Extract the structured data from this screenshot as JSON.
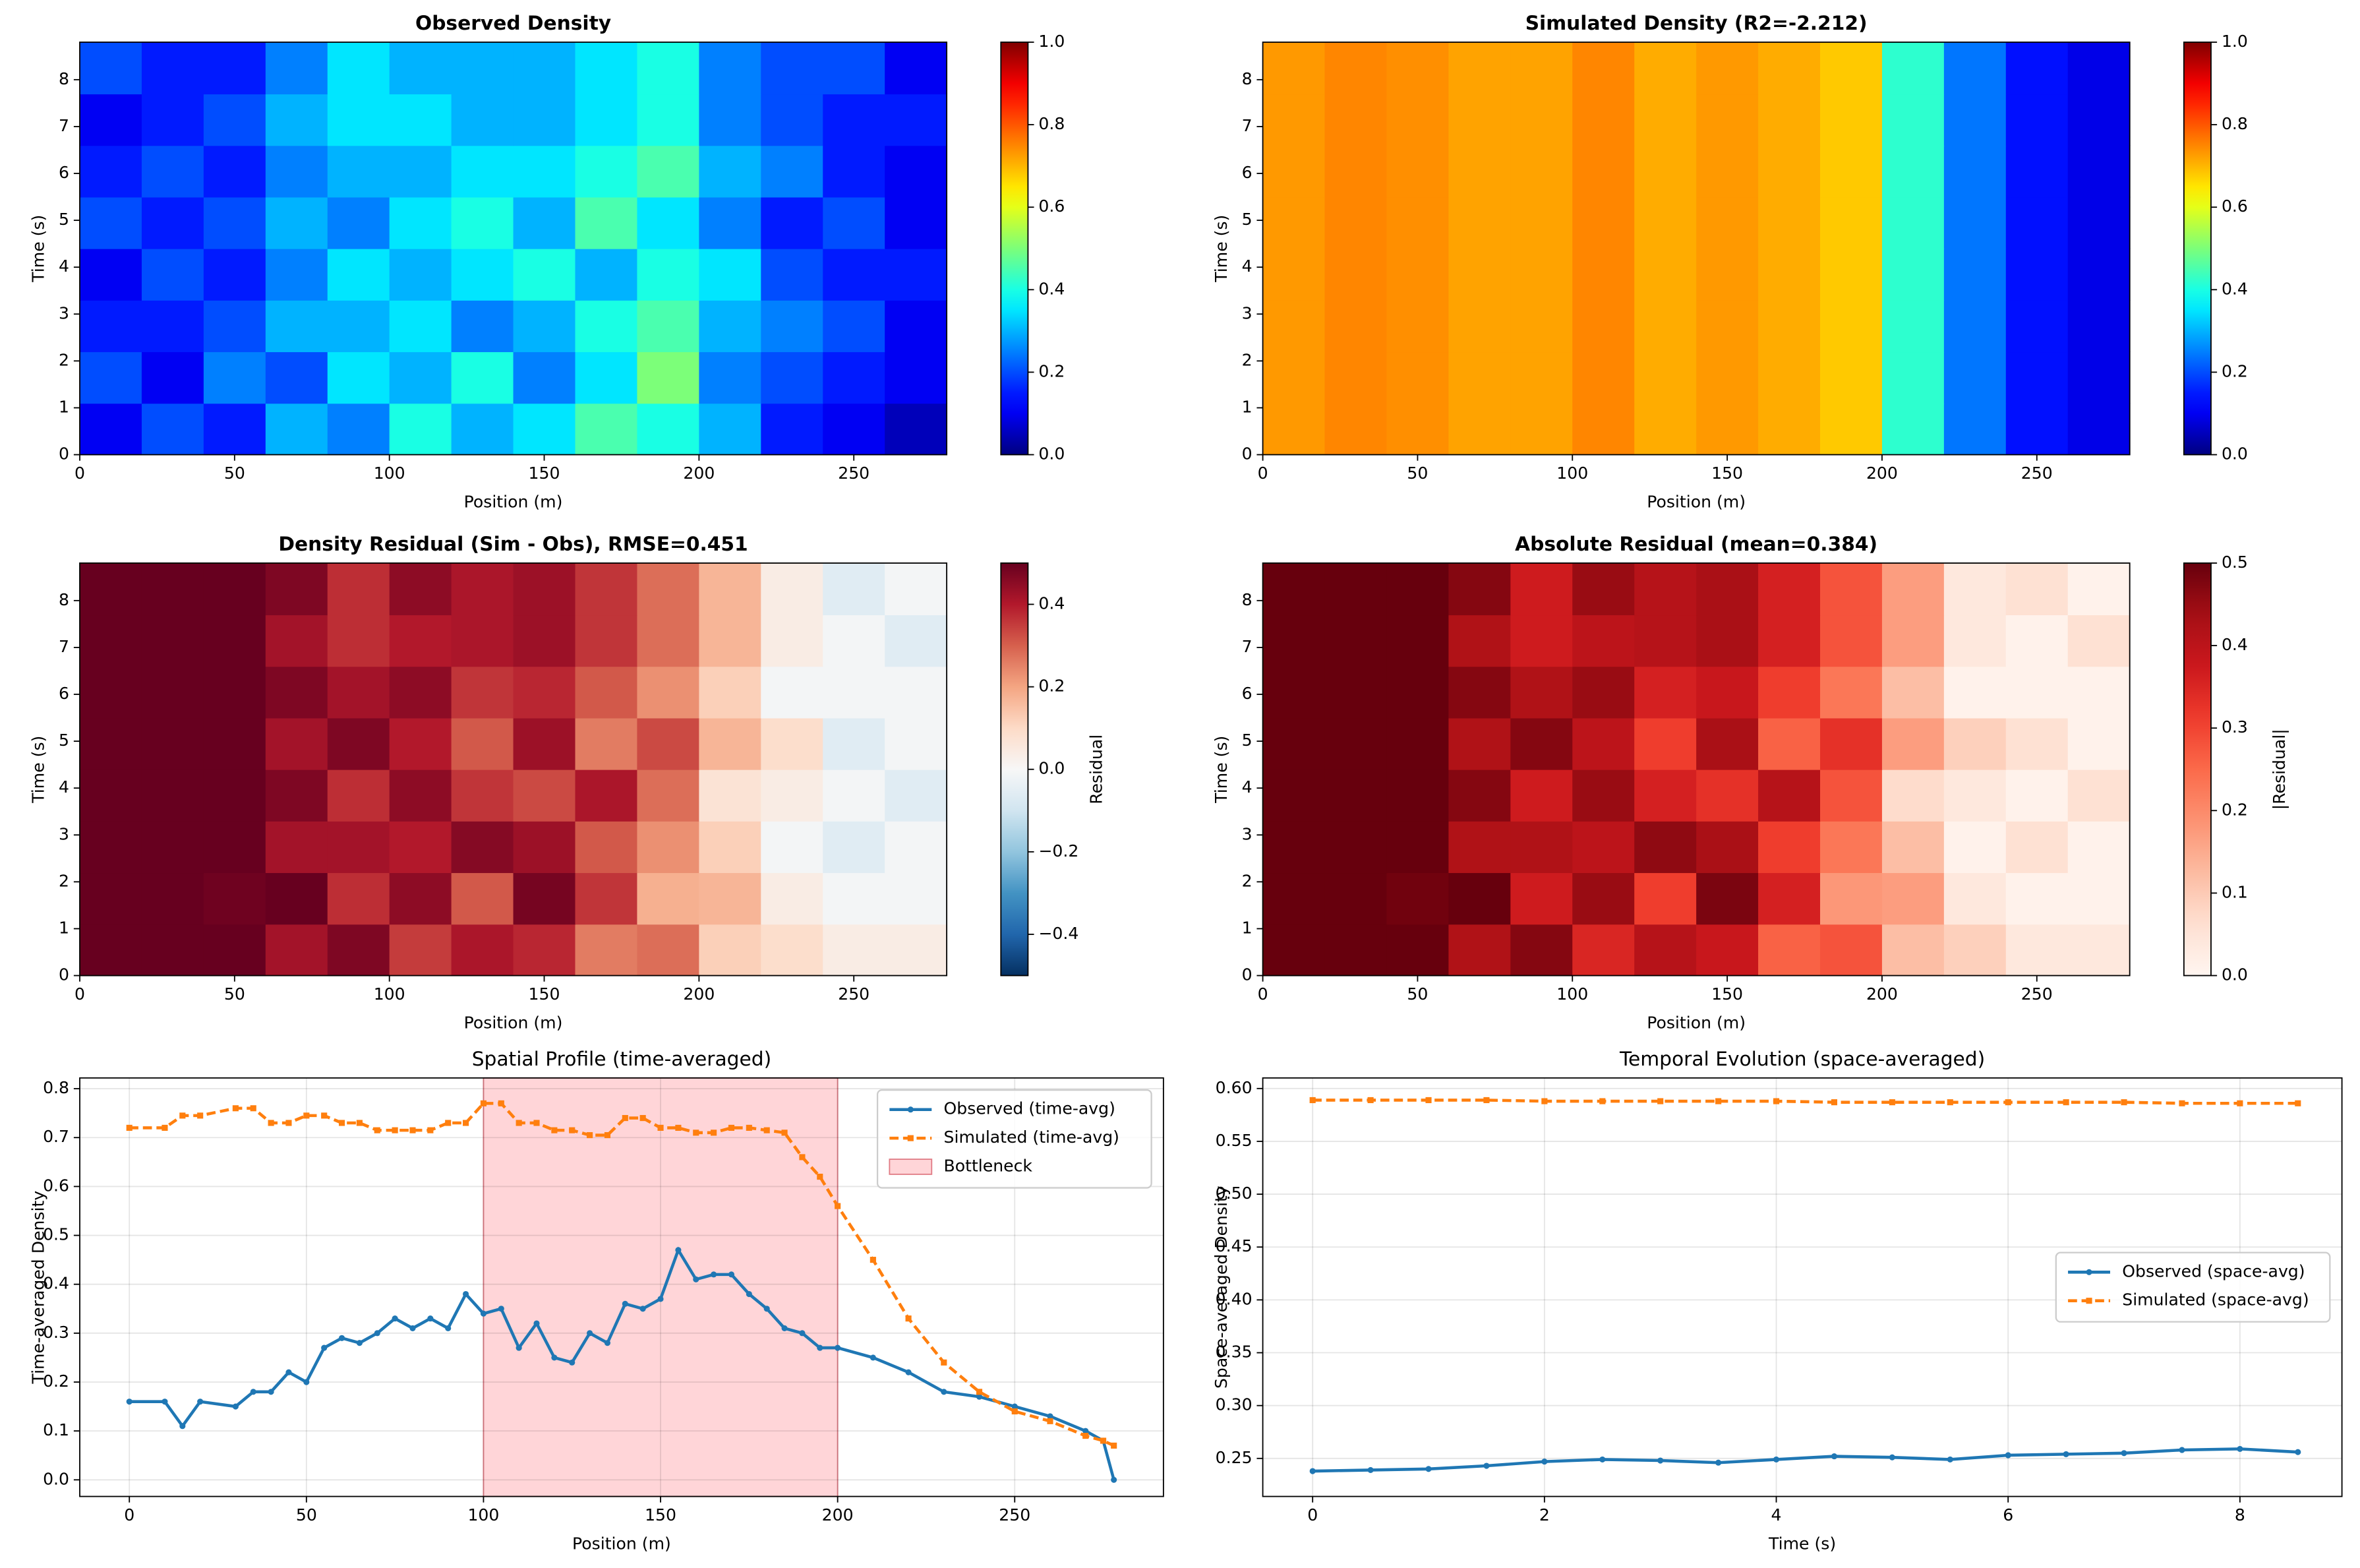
{
  "chart_data": [
    {
      "type": "heatmap",
      "title": "Observed Density",
      "xlabel": "Position (m)",
      "ylabel": "Time (s)",
      "xlim": [
        0,
        280
      ],
      "ylim": [
        0,
        8.8
      ],
      "xticks": [
        0,
        50,
        100,
        150,
        200,
        250
      ],
      "yticks": [
        0,
        1,
        2,
        3,
        4,
        5,
        6,
        7,
        8
      ],
      "cmap": "jet",
      "clim": [
        0,
        1
      ],
      "cticks": [
        {
          "value": 0,
          "label": "0.0"
        },
        0.2,
        0.4,
        0.6,
        0.8,
        {
          "value": 1,
          "label": "1.0"
        }
      ],
      "z": [
        [
          0.1,
          0.2,
          0.15,
          0.3,
          0.25,
          0.4,
          0.3,
          0.35,
          0.45,
          0.4,
          0.3,
          0.15,
          0.1,
          0.05
        ],
        [
          0.2,
          0.1,
          0.25,
          0.2,
          0.35,
          0.3,
          0.4,
          0.25,
          0.35,
          0.5,
          0.25,
          0.2,
          0.15,
          0.1
        ],
        [
          0.15,
          0.15,
          0.2,
          0.3,
          0.3,
          0.35,
          0.25,
          0.3,
          0.4,
          0.45,
          0.3,
          0.25,
          0.2,
          0.1
        ],
        [
          0.1,
          0.2,
          0.15,
          0.25,
          0.35,
          0.3,
          0.35,
          0.4,
          0.3,
          0.4,
          0.35,
          0.2,
          0.15,
          0.15
        ],
        [
          0.2,
          0.15,
          0.2,
          0.3,
          0.25,
          0.35,
          0.4,
          0.3,
          0.45,
          0.35,
          0.25,
          0.15,
          0.2,
          0.1
        ],
        [
          0.15,
          0.2,
          0.15,
          0.25,
          0.3,
          0.3,
          0.35,
          0.35,
          0.4,
          0.45,
          0.3,
          0.25,
          0.15,
          0.1
        ],
        [
          0.1,
          0.15,
          0.2,
          0.3,
          0.35,
          0.35,
          0.3,
          0.3,
          0.35,
          0.4,
          0.25,
          0.2,
          0.15,
          0.15
        ],
        [
          0.2,
          0.15,
          0.15,
          0.25,
          0.35,
          0.3,
          0.3,
          0.3,
          0.35,
          0.4,
          0.25,
          0.2,
          0.2,
          0.1
        ]
      ]
    },
    {
      "type": "heatmap",
      "title": "Simulated Density (R2=-2.212)",
      "xlabel": "Position (m)",
      "ylabel": "Time (s)",
      "xlim": [
        0,
        280
      ],
      "ylim": [
        0,
        8.8
      ],
      "xticks": [
        0,
        50,
        100,
        150,
        200,
        250
      ],
      "yticks": [
        0,
        1,
        2,
        3,
        4,
        5,
        6,
        7,
        8
      ],
      "cmap": "jet",
      "clim": [
        0,
        1
      ],
      "cticks": [
        {
          "value": 0,
          "label": "0.0"
        },
        0.2,
        0.4,
        0.6,
        0.8,
        {
          "value": 1,
          "label": "1.0"
        }
      ],
      "z": [
        [
          0.73,
          0.75,
          0.74,
          0.72,
          0.72,
          0.75,
          0.71,
          0.73,
          0.71,
          0.68,
          0.42,
          0.24,
          0.14,
          0.09
        ],
        [
          0.73,
          0.75,
          0.74,
          0.72,
          0.72,
          0.75,
          0.71,
          0.73,
          0.71,
          0.68,
          0.42,
          0.24,
          0.14,
          0.09
        ],
        [
          0.73,
          0.75,
          0.74,
          0.72,
          0.72,
          0.75,
          0.71,
          0.73,
          0.71,
          0.68,
          0.42,
          0.24,
          0.14,
          0.09
        ],
        [
          0.73,
          0.75,
          0.74,
          0.72,
          0.72,
          0.75,
          0.71,
          0.73,
          0.71,
          0.68,
          0.42,
          0.24,
          0.14,
          0.09
        ],
        [
          0.73,
          0.75,
          0.74,
          0.72,
          0.72,
          0.75,
          0.71,
          0.73,
          0.71,
          0.68,
          0.42,
          0.24,
          0.14,
          0.09
        ],
        [
          0.73,
          0.75,
          0.74,
          0.72,
          0.72,
          0.75,
          0.71,
          0.73,
          0.71,
          0.68,
          0.42,
          0.24,
          0.14,
          0.09
        ],
        [
          0.73,
          0.75,
          0.74,
          0.72,
          0.72,
          0.75,
          0.71,
          0.73,
          0.71,
          0.68,
          0.42,
          0.24,
          0.14,
          0.09
        ],
        [
          0.73,
          0.75,
          0.74,
          0.72,
          0.72,
          0.75,
          0.71,
          0.73,
          0.71,
          0.68,
          0.42,
          0.24,
          0.14,
          0.09
        ]
      ]
    },
    {
      "type": "heatmap",
      "title": "Density Residual (Sim - Obs), RMSE=0.451",
      "xlabel": "Position (m)",
      "ylabel": "Time (s)",
      "xlim": [
        0,
        280
      ],
      "ylim": [
        0,
        8.8
      ],
      "xticks": [
        0,
        50,
        100,
        150,
        200,
        250
      ],
      "yticks": [
        0,
        1,
        2,
        3,
        4,
        5,
        6,
        7,
        8
      ],
      "cmap": "RdBu_r",
      "clim": [
        -0.5,
        0.5
      ],
      "clabel": "Residual",
      "cticks": [
        {
          "value": -0.4,
          "label": "−0.4"
        },
        {
          "value": -0.2,
          "label": "−0.2"
        },
        {
          "value": 0,
          "label": "0.0"
        },
        0.2,
        0.4
      ],
      "z": [
        [
          0.63,
          0.55,
          0.59,
          0.42,
          0.47,
          0.35,
          0.41,
          0.38,
          0.26,
          0.28,
          0.12,
          0.09,
          0.04,
          0.04
        ],
        [
          0.53,
          0.65,
          0.49,
          0.52,
          0.37,
          0.45,
          0.31,
          0.48,
          0.36,
          0.18,
          0.17,
          0.04,
          -0.01,
          -0.01
        ],
        [
          0.58,
          0.6,
          0.54,
          0.42,
          0.42,
          0.4,
          0.46,
          0.43,
          0.31,
          0.23,
          0.12,
          -0.01,
          -0.06,
          -0.01
        ],
        [
          0.63,
          0.55,
          0.59,
          0.47,
          0.37,
          0.45,
          0.36,
          0.33,
          0.41,
          0.28,
          0.07,
          0.04,
          -0.01,
          -0.06
        ],
        [
          0.53,
          0.6,
          0.54,
          0.42,
          0.47,
          0.4,
          0.31,
          0.43,
          0.26,
          0.33,
          0.17,
          0.09,
          -0.06,
          -0.01
        ],
        [
          0.58,
          0.55,
          0.59,
          0.47,
          0.42,
          0.45,
          0.36,
          0.38,
          0.31,
          0.23,
          0.12,
          -0.01,
          -0.01,
          -0.01
        ],
        [
          0.63,
          0.6,
          0.54,
          0.42,
          0.37,
          0.4,
          0.41,
          0.43,
          0.36,
          0.28,
          0.17,
          0.04,
          -0.01,
          -0.06
        ],
        [
          0.53,
          0.6,
          0.59,
          0.47,
          0.37,
          0.45,
          0.41,
          0.43,
          0.36,
          0.28,
          0.17,
          0.04,
          -0.06,
          -0.01
        ]
      ]
    },
    {
      "type": "heatmap",
      "title": "Absolute Residual (mean=0.384)",
      "xlabel": "Position (m)",
      "ylabel": "Time (s)",
      "xlim": [
        0,
        280
      ],
      "ylim": [
        0,
        8.8
      ],
      "xticks": [
        0,
        50,
        100,
        150,
        200,
        250
      ],
      "yticks": [
        0,
        1,
        2,
        3,
        4,
        5,
        6,
        7,
        8
      ],
      "cmap": "Reds",
      "clim": [
        0,
        0.5
      ],
      "clabel": "|Residual|",
      "cticks": [
        {
          "value": 0,
          "label": "0.0"
        },
        0.1,
        0.2,
        0.3,
        0.4,
        0.5
      ],
      "z": [
        [
          0.63,
          0.55,
          0.59,
          0.42,
          0.47,
          0.35,
          0.41,
          0.38,
          0.26,
          0.28,
          0.12,
          0.09,
          0.04,
          0.04
        ],
        [
          0.53,
          0.65,
          0.49,
          0.52,
          0.37,
          0.45,
          0.31,
          0.48,
          0.36,
          0.18,
          0.17,
          0.04,
          0.01,
          0.01
        ],
        [
          0.58,
          0.6,
          0.54,
          0.42,
          0.42,
          0.4,
          0.46,
          0.43,
          0.31,
          0.23,
          0.12,
          0.01,
          0.06,
          0.01
        ],
        [
          0.63,
          0.55,
          0.59,
          0.47,
          0.37,
          0.45,
          0.36,
          0.33,
          0.41,
          0.28,
          0.07,
          0.04,
          0.01,
          0.06
        ],
        [
          0.53,
          0.6,
          0.54,
          0.42,
          0.47,
          0.4,
          0.31,
          0.43,
          0.26,
          0.33,
          0.17,
          0.09,
          0.06,
          0.01
        ],
        [
          0.58,
          0.55,
          0.59,
          0.47,
          0.42,
          0.45,
          0.36,
          0.38,
          0.31,
          0.23,
          0.12,
          0.01,
          0.01,
          0.01
        ],
        [
          0.63,
          0.6,
          0.54,
          0.42,
          0.37,
          0.4,
          0.41,
          0.43,
          0.36,
          0.28,
          0.17,
          0.04,
          0.01,
          0.06
        ],
        [
          0.53,
          0.6,
          0.59,
          0.47,
          0.37,
          0.45,
          0.41,
          0.43,
          0.36,
          0.28,
          0.17,
          0.04,
          0.06,
          0.01
        ]
      ]
    },
    {
      "type": "line",
      "title": "Spatial Profile (time-averaged)",
      "xlabel": "Position (m)",
      "ylabel": "Time-averaged Density",
      "xlim": [
        -14,
        292
      ],
      "ylim": [
        -0.034,
        0.822
      ],
      "xticks": [
        0,
        50,
        100,
        150,
        200,
        250
      ],
      "yticks": [
        {
          "value": 0,
          "label": "0.0"
        },
        0.1,
        0.2,
        0.3,
        0.4,
        0.5,
        0.6,
        0.7,
        0.8
      ],
      "grid": true,
      "legend": "upper right",
      "x": [
        0,
        10,
        15,
        20,
        30,
        35,
        40,
        45,
        50,
        55,
        60,
        65,
        70,
        75,
        80,
        85,
        90,
        95,
        100,
        105,
        110,
        115,
        120,
        125,
        130,
        135,
        140,
        145,
        150,
        155,
        160,
        165,
        170,
        175,
        180,
        185,
        190,
        195,
        200,
        210,
        220,
        230,
        240,
        250,
        260,
        270,
        275,
        278
      ],
      "series": [
        {
          "name": "Observed (time-avg)",
          "color": "#1f77b4",
          "dashed": false,
          "marker": "circle",
          "values": [
            0.16,
            0.16,
            0.11,
            0.16,
            0.15,
            0.18,
            0.18,
            0.22,
            0.2,
            0.27,
            0.29,
            0.28,
            0.3,
            0.33,
            0.31,
            0.33,
            0.31,
            0.38,
            0.34,
            0.35,
            0.27,
            0.32,
            0.25,
            0.24,
            0.3,
            0.28,
            0.36,
            0.35,
            0.37,
            0.47,
            0.41,
            0.42,
            0.42,
            0.38,
            0.35,
            0.31,
            0.3,
            0.27,
            0.27,
            0.25,
            0.22,
            0.18,
            0.17,
            0.15,
            0.13,
            0.1,
            0.08,
            0.0
          ]
        },
        {
          "name": "Simulated (time-avg)",
          "color": "#ff7f0e",
          "dashed": true,
          "marker": "square",
          "values": [
            0.72,
            0.72,
            0.745,
            0.745,
            0.76,
            0.76,
            0.73,
            0.73,
            0.745,
            0.745,
            0.73,
            0.73,
            0.715,
            0.715,
            0.715,
            0.715,
            0.73,
            0.73,
            0.77,
            0.77,
            0.73,
            0.73,
            0.715,
            0.715,
            0.705,
            0.705,
            0.74,
            0.74,
            0.72,
            0.72,
            0.71,
            0.71,
            0.72,
            0.72,
            0.715,
            0.71,
            0.66,
            0.62,
            0.56,
            0.45,
            0.33,
            0.24,
            0.18,
            0.14,
            0.12,
            0.09,
            0.08,
            0.07
          ]
        }
      ],
      "spans": [
        {
          "name": "Bottleneck",
          "x": [
            100,
            200
          ],
          "color": "#ffb3b8"
        }
      ]
    },
    {
      "type": "line",
      "title": "Temporal Evolution (space-averaged)",
      "xlabel": "Time (s)",
      "ylabel": "Space-averaged Density",
      "xlim": [
        -0.43,
        8.88
      ],
      "ylim": [
        0.214,
        0.61
      ],
      "xticks": [
        0,
        2,
        4,
        6,
        8
      ],
      "yticks": [
        0.25,
        {
          "value": 0.3,
          "label": "0.30"
        },
        0.35,
        {
          "value": 0.4,
          "label": "0.40"
        },
        0.45,
        {
          "value": 0.5,
          "label": "0.50"
        },
        0.55,
        {
          "value": 0.6,
          "label": "0.60"
        }
      ],
      "grid": true,
      "legend": "center right",
      "x": [
        0,
        0.5,
        1,
        1.5,
        2,
        2.5,
        3,
        3.5,
        4,
        4.5,
        5,
        5.5,
        6,
        6.5,
        7,
        7.5,
        8,
        8.5
      ],
      "series": [
        {
          "name": "Observed (space-avg)",
          "color": "#1f77b4",
          "dashed": false,
          "marker": "circle",
          "values": [
            0.238,
            0.239,
            0.24,
            0.243,
            0.247,
            0.249,
            0.248,
            0.246,
            0.249,
            0.252,
            0.251,
            0.249,
            0.253,
            0.254,
            0.255,
            0.258,
            0.259,
            0.256
          ]
        },
        {
          "name": "Simulated (space-avg)",
          "color": "#ff7f0e",
          "dashed": true,
          "marker": "square",
          "values": [
            0.589,
            0.589,
            0.589,
            0.589,
            0.588,
            0.588,
            0.588,
            0.588,
            0.588,
            0.587,
            0.587,
            0.587,
            0.587,
            0.587,
            0.587,
            0.586,
            0.586,
            0.586
          ]
        }
      ]
    }
  ]
}
